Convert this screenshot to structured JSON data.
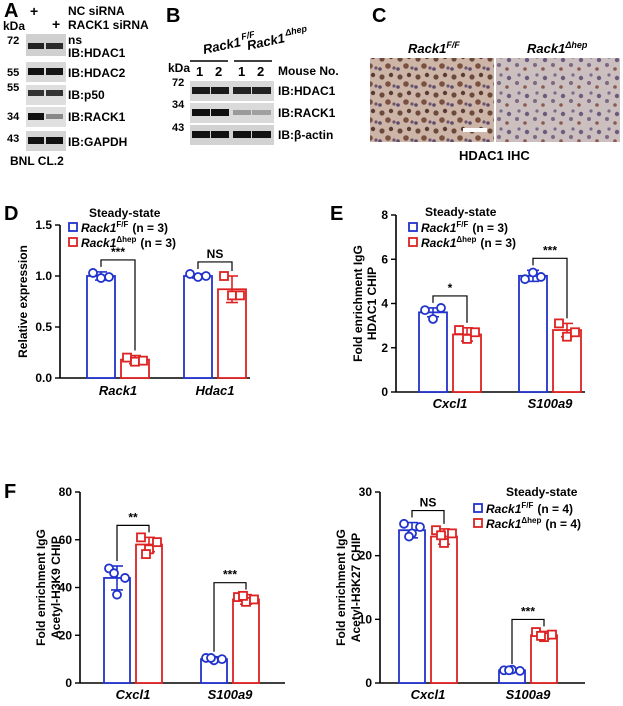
{
  "figure": {
    "panel_a": {
      "letter": "A",
      "kda_label": "kDa",
      "lanes": [
        "+",
        "+"
      ],
      "conditions": [
        "NC siRNA",
        "RACK1 siRNA"
      ],
      "markers": [
        "72",
        "55",
        "55",
        "34",
        "43"
      ],
      "ns_label": "ns",
      "blots": [
        "IB:HDAC1",
        "IB:HDAC2",
        "IB:p50",
        "IB:RACK1",
        "IB:GAPDH"
      ],
      "cell_line": "BNL CL.2"
    },
    "panel_b": {
      "letter": "B",
      "kda_label": "kDa",
      "group1": "Rack1",
      "group1_sup": "F/F",
      "group2": "Rack1",
      "group2_sup": "Δhep",
      "lanes": [
        "1",
        "2",
        "1",
        "2"
      ],
      "mouse_label": "Mouse No.",
      "markers": [
        "72",
        "34",
        "43"
      ],
      "blots": [
        "IB:HDAC1",
        "IB:RACK1",
        "IB:β-actin"
      ]
    },
    "panel_c": {
      "letter": "C",
      "group1": "Rack1",
      "group1_sup": "F/F",
      "group2": "Rack1",
      "group2_sup": "Δhep",
      "caption": "HDAC1 IHC"
    },
    "legend_common": {
      "title": "Steady-state",
      "ff_name": "Rack1",
      "ff_sup": "F/F",
      "hep_name": "Rack1",
      "hep_sup": "Δhep",
      "n3": "(n = 3)",
      "n4": "(n = 4)"
    },
    "colors": {
      "ff": "#2233cc",
      "hep": "#dd2222"
    }
  },
  "chart_data": [
    {
      "id": "D",
      "letter": "D",
      "type": "bar",
      "ylabel": [
        "Relative  expression"
      ],
      "ylim": [
        0,
        1.5
      ],
      "yticks": [
        "0.0",
        "0.5",
        "1.0",
        "1.5"
      ],
      "categories": [
        "Rack1",
        "Hdac1"
      ],
      "series": [
        {
          "name": "Rack1 F/F (n = 3)",
          "values": [
            1.0,
            1.0
          ],
          "errors": [
            0.04,
            0.02
          ],
          "points": [
            [
              1.03,
              0.98,
              0.99
            ],
            [
              1.02,
              0.99,
              1.0
            ]
          ]
        },
        {
          "name": "Rack1 Δhep (n = 3)",
          "values": [
            0.18,
            0.87
          ],
          "errors": [
            0.04,
            0.13
          ],
          "points": [
            [
              0.2,
              0.16,
              0.17
            ],
            [
              1.0,
              0.81,
              0.81
            ]
          ]
        }
      ],
      "annotations": [
        "***",
        "NS"
      ]
    },
    {
      "id": "E",
      "letter": "E",
      "type": "bar",
      "ylabel": [
        "Fold enrichment IgG",
        "HDAC1 CHIP"
      ],
      "ylim": [
        0,
        8
      ],
      "yticks": [
        "0",
        "2",
        "4",
        "6",
        "8"
      ],
      "categories": [
        "Cxcl1",
        "S100a9"
      ],
      "series": [
        {
          "name": "Rack1 F/F (n = 3)",
          "values": [
            3.6,
            5.25
          ],
          "errors": [
            0.2,
            0.25
          ],
          "points": [
            [
              3.7,
              3.3,
              3.8
            ],
            [
              5.1,
              5.4,
              5.2
            ]
          ]
        },
        {
          "name": "Rack1 Δhep (n = 3)",
          "values": [
            2.6,
            2.8
          ],
          "errors": [
            0.3,
            0.3
          ],
          "points": [
            [
              2.8,
              2.4,
              2.7
            ],
            [
              3.1,
              2.5,
              2.7
            ]
          ]
        }
      ],
      "annotations": [
        "*",
        "***"
      ]
    },
    {
      "id": "F1",
      "letter": "F",
      "type": "bar",
      "ylabel": [
        "Fold enrichment IgG",
        "Acetyl-H3K9 CHIP"
      ],
      "ylim": [
        0,
        80
      ],
      "yticks": [
        "0",
        "20",
        "40",
        "60",
        "80"
      ],
      "categories": [
        "Cxcl1",
        "S100a9"
      ],
      "series": [
        {
          "name": "Rack1 F/F (n = 4)",
          "values": [
            44,
            10
          ],
          "errors": [
            5,
            1
          ],
          "points": [
            [
              48,
              37,
              44,
              46
            ],
            [
              10.5,
              9.5,
              10,
              10.5
            ]
          ]
        },
        {
          "name": "Rack1 Δhep (n = 4)",
          "values": [
            58,
            35
          ],
          "errors": [
            3,
            2
          ],
          "points": [
            [
              61,
              56,
              59,
              54
            ],
            [
              36,
              34,
              35,
              36.5
            ]
          ]
        }
      ],
      "annotations": [
        "**",
        "***"
      ]
    },
    {
      "id": "F2",
      "letter": "",
      "type": "bar",
      "ylabel": [
        "Fold enrichment IgG",
        "Acetyl-H3K27 CHIP"
      ],
      "ylim": [
        0,
        30
      ],
      "yticks": [
        "0",
        "10",
        "20",
        "30"
      ],
      "categories": [
        "Cxcl1",
        "S100a9"
      ],
      "series": [
        {
          "name": "Rack1 F/F (n = 4)",
          "values": [
            24,
            2
          ],
          "errors": [
            1.2,
            0.2
          ],
          "points": [
            [
              25,
              23.5,
              24.5,
              23
            ],
            [
              2,
              2.1,
              1.9,
              2.0
            ]
          ]
        },
        {
          "name": "Rack1 Δhep (n = 4)",
          "values": [
            23,
            7.5
          ],
          "errors": [
            1.2,
            0.6
          ],
          "points": [
            [
              24,
              22,
              23.5,
              23.2
            ],
            [
              8,
              7.2,
              7.6,
              7.4
            ]
          ]
        }
      ],
      "annotations": [
        "NS",
        "***"
      ]
    }
  ]
}
